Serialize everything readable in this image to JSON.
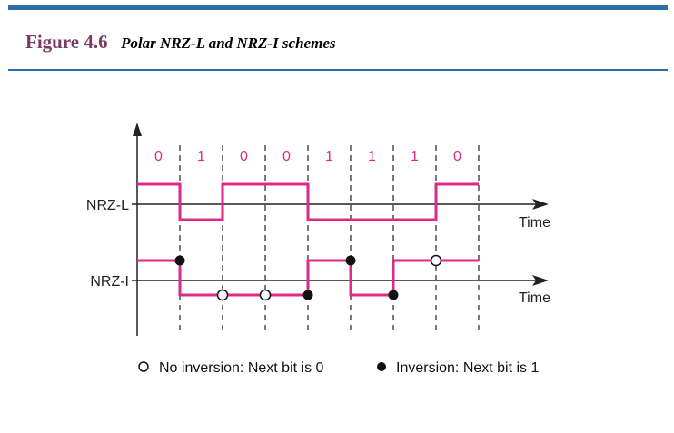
{
  "figure": {
    "number": "Figure 4.6",
    "caption": "Polar NRZ-L and NRZ-I schemes"
  },
  "bits": [
    "0",
    "1",
    "0",
    "0",
    "1",
    "1",
    "1",
    "0"
  ],
  "signals": {
    "nrz_l": {
      "label": "NRZ-L",
      "axis_label": "Time",
      "levels": [
        "high",
        "low",
        "high",
        "high",
        "low",
        "low",
        "low",
        "high"
      ]
    },
    "nrz_i": {
      "label": "NRZ-I",
      "axis_label": "Time",
      "levels": [
        "high",
        "low",
        "low",
        "low",
        "high",
        "low",
        "high",
        "high"
      ]
    }
  },
  "markers": [
    "inversion",
    "no-inversion",
    "no-inversion",
    "inversion",
    "inversion",
    "inversion",
    "no-inversion"
  ],
  "legend": {
    "no_inversion": "No inversion: Next bit is 0",
    "inversion": "Inversion: Next bit is 1"
  },
  "colors": {
    "signal": "#e0288a",
    "title_number": "#7a3a67",
    "rule": "#2d6ea8"
  }
}
